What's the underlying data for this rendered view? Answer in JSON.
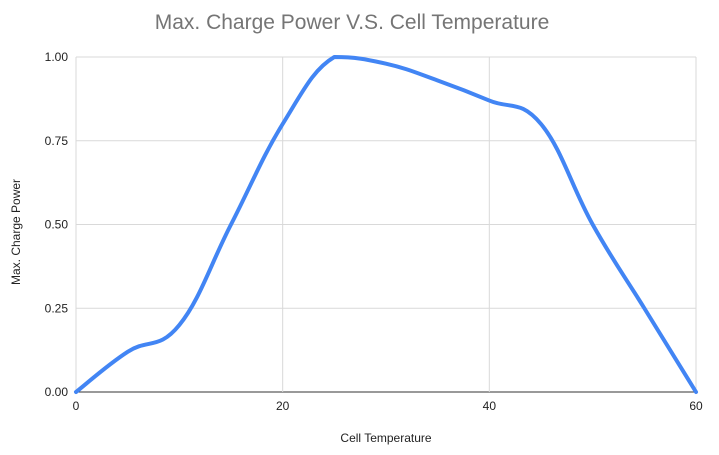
{
  "chart_data": {
    "type": "line",
    "title": "Max. Charge Power V.S. Cell Temperature",
    "xlabel": "Cell Temperature",
    "ylabel": "Max. Charge Power",
    "xlim": [
      0,
      60
    ],
    "ylim": [
      0,
      1
    ],
    "x_ticks": [
      "0",
      "20",
      "40",
      "60"
    ],
    "y_ticks": [
      "0.00",
      "0.25",
      "0.50",
      "0.75",
      "1.00"
    ],
    "grid": true,
    "legend": "none",
    "series": [
      {
        "color": "#4285f4",
        "x": [
          0,
          5,
          10,
          15,
          20,
          25,
          30,
          35,
          40,
          45,
          50,
          55,
          60
        ],
        "y": [
          0,
          0.12,
          0.2,
          0.5,
          0.8,
          1.0,
          0.98,
          0.93,
          0.87,
          0.8,
          0.5,
          0.25,
          0
        ]
      }
    ]
  }
}
